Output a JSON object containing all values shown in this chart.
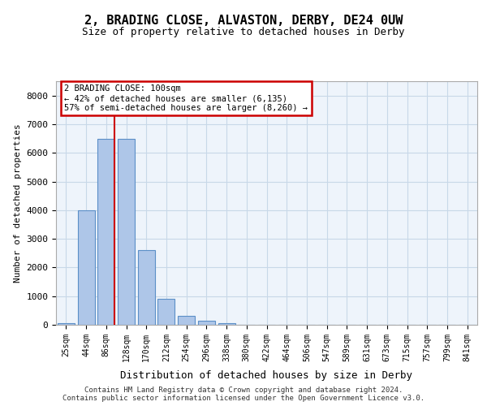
{
  "title": "2, BRADING CLOSE, ALVASTON, DERBY, DE24 0UW",
  "subtitle": "Size of property relative to detached houses in Derby",
  "xlabel": "Distribution of detached houses by size in Derby",
  "ylabel": "Number of detached properties",
  "bin_labels": [
    "25sqm",
    "44sqm",
    "86sqm",
    "128sqm",
    "170sqm",
    "212sqm",
    "254sqm",
    "296sqm",
    "338sqm",
    "380sqm",
    "422sqm",
    "464sqm",
    "506sqm",
    "547sqm",
    "589sqm",
    "631sqm",
    "673sqm",
    "715sqm",
    "757sqm",
    "799sqm",
    "841sqm"
  ],
  "bin_values": [
    50,
    4000,
    6500,
    6500,
    2600,
    900,
    300,
    150,
    50,
    0,
    0,
    0,
    0,
    0,
    0,
    0,
    0,
    0,
    0,
    0,
    0
  ],
  "bar_color": "#aec6e8",
  "bar_edge_color": "#5b8fc7",
  "grid_color": "#c8d8e8",
  "background_color": "#eef4fb",
  "vline_x": 2.4,
  "annotation_line1": "2 BRADING CLOSE: 100sqm",
  "annotation_line2": "← 42% of detached houses are smaller (6,135)",
  "annotation_line3": "57% of semi-detached houses are larger (8,260) →",
  "annotation_box_color": "#ffffff",
  "annotation_box_edge": "#cc0000",
  "vline_color": "#cc0000",
  "footer_line1": "Contains HM Land Registry data © Crown copyright and database right 2024.",
  "footer_line2": "Contains public sector information licensed under the Open Government Licence v3.0.",
  "ylim": [
    0,
    8500
  ],
  "yticks": [
    0,
    1000,
    2000,
    3000,
    4000,
    5000,
    6000,
    7000,
    8000
  ]
}
